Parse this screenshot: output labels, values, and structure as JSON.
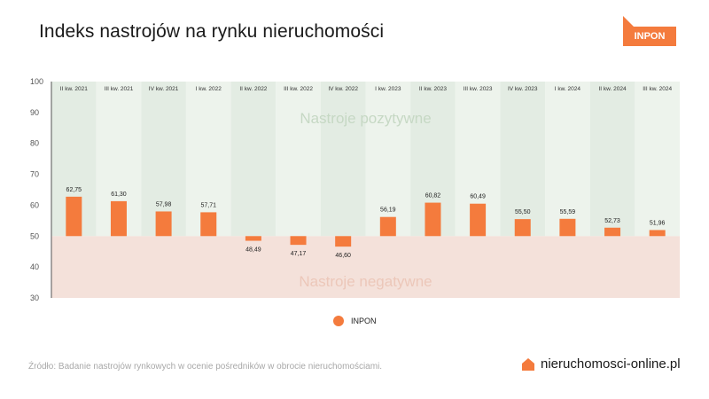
{
  "header": {
    "title": "Indeks nastrojów na rynku nieruchomości",
    "badge": "INPON"
  },
  "colors": {
    "bar": "#f47b3d",
    "positive_zone": "#e3ece3",
    "positive_zone_alt": "#edf3ec",
    "negative_zone": "#f4e1da",
    "zone_text_positive": "#c6d8c4",
    "zone_text_negative": "#ecc7b9"
  },
  "chart_data": {
    "type": "bar",
    "categories": [
      "II kw. 2021",
      "III kw. 2021",
      "IV kw. 2021",
      "I kw. 2022",
      "II kw. 2022",
      "III kw. 2022",
      "IV kw. 2022",
      "I kw. 2023",
      "II kw. 2023",
      "III kw. 2023",
      "IV kw. 2023",
      "I kw. 2024",
      "II kw. 2024",
      "III kw. 2024"
    ],
    "series": [
      {
        "name": "INPON",
        "values": [
          62.75,
          61.3,
          57.98,
          57.71,
          48.49,
          47.17,
          46.6,
          56.19,
          60.82,
          60.49,
          55.5,
          55.59,
          52.73,
          51.96
        ],
        "labels": [
          "62,75",
          "61,30",
          "57,98",
          "57,71",
          "48,49",
          "47,17",
          "46,60",
          "56,19",
          "60,82",
          "60,49",
          "55,50",
          "55,59",
          "52,73",
          "51,96"
        ]
      }
    ],
    "baseline": 50,
    "ylim": [
      30,
      100
    ],
    "yticks": [
      "30",
      "40",
      "50",
      "60",
      "70",
      "80",
      "90",
      "100"
    ],
    "zones": {
      "positive": "Nastroje pozytywne",
      "negative": "Nastroje negatywne"
    },
    "legend": "bottom-center"
  },
  "footer": {
    "source": "Źródło: Badanie nastrojów rynkowych w ocenie pośredników w obrocie nieruchomościami.",
    "brand": "nieruchomosci-online.pl"
  }
}
